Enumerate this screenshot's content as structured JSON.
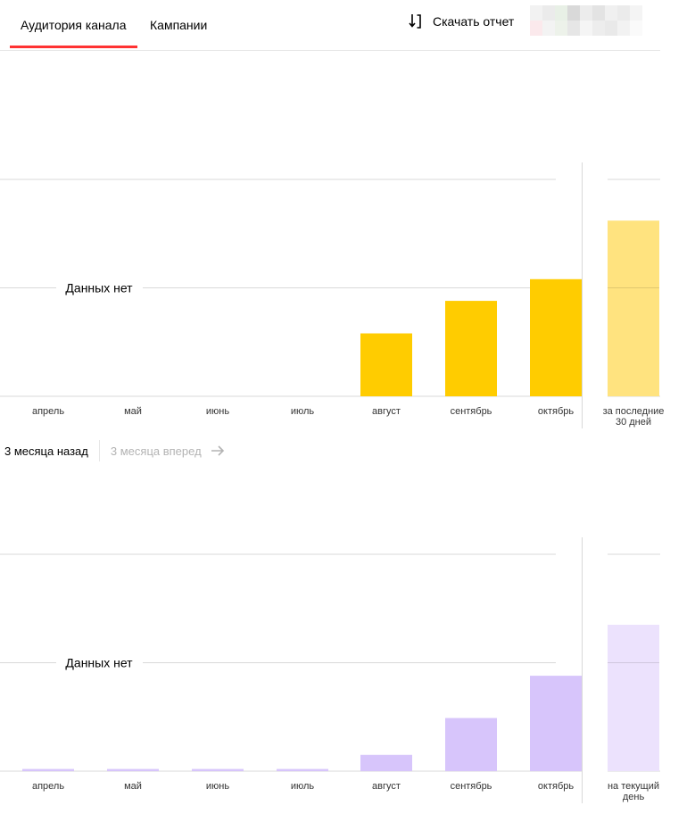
{
  "tabs": [
    {
      "label": "Аудитория канала",
      "active": true
    },
    {
      "label": "Кампании",
      "active": false
    }
  ],
  "download": {
    "label": "Скачать отчет",
    "icon": "download-sort-icon"
  },
  "account": {
    "colors": [
      "#f2f2f2",
      "#ebebeb",
      "#e8f0e6",
      "#d9d9d9",
      "#ececec",
      "#e3e3e3",
      "#f0f0f0",
      "#ebebeb",
      "#f4f4f4",
      "#fbe9ec",
      "#f3f3f3",
      "#edf2ea",
      "#e6e6e6",
      "#f5f5f5",
      "#ededed",
      "#e9e9e9",
      "#f2f2f2",
      "#fafafa"
    ]
  },
  "pager": {
    "back": "3 месяца назад",
    "forward": "3 месяца вперед",
    "forward_icon": "arrow-right-icon"
  },
  "chart_data": [
    {
      "type": "bar",
      "categories": [
        "апрель",
        "май",
        "июнь",
        "июль",
        "август",
        "сентябрь",
        "октябрь"
      ],
      "values": [
        0,
        0,
        0,
        0,
        0.29,
        0.44,
        0.54
      ],
      "summary": {
        "label": [
          "за последние",
          "30 дней"
        ],
        "value": 0.81
      },
      "no_data_label": "Данных нет",
      "ylim": [
        0,
        1
      ],
      "grid": true,
      "colors": {
        "bar": "#ffcc00",
        "summary": "#ffe37f",
        "grid": "#d9d9d9"
      }
    },
    {
      "type": "bar",
      "categories": [
        "апрель",
        "май",
        "июнь",
        "июль",
        "август",
        "сентябрь",
        "октябрь"
      ],
      "values": [
        0.02,
        0.02,
        0.02,
        0.02,
        0.15,
        0.49,
        0.88
      ],
      "summary": {
        "label": [
          "на текущий",
          "день"
        ],
        "value": 1.35
      },
      "no_data_label": "Данных нет",
      "ylim": [
        0,
        2
      ],
      "grid": true,
      "colors": {
        "bar": "#d7c5fb",
        "summary": "#ece2fd",
        "grid": "#d9d9d9"
      }
    }
  ]
}
